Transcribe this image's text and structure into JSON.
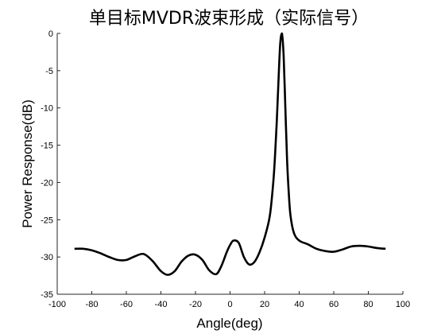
{
  "chart_data": {
    "type": "line",
    "title": "单目标MVDR波束形成（实际信号）",
    "xlabel": "Angle(deg)",
    "ylabel": "Power Response(dB)",
    "xlim": [
      -100,
      100
    ],
    "ylim": [
      -35,
      0
    ],
    "grid": false,
    "x_ticks": [
      -100,
      -80,
      -60,
      -40,
      -20,
      0,
      20,
      40,
      60,
      80,
      100
    ],
    "y_ticks": [
      0,
      -5,
      -10,
      -15,
      -20,
      -25,
      -30,
      -35
    ],
    "x_tick_labels": [
      "-100",
      "-80",
      "-60",
      "-40",
      "-20",
      "0",
      "20",
      "40",
      "60",
      "80",
      "100"
    ],
    "y_tick_labels": [
      "0",
      "-5",
      "-10",
      "-15",
      "-20",
      "-25",
      "-30",
      "-35"
    ],
    "series": [
      {
        "color": "#000000",
        "x": [
          -90,
          -85,
          -80,
          -75,
          -70,
          -65,
          -60,
          -55,
          -50,
          -45,
          -40,
          -36,
          -32,
          -28,
          -24,
          -20,
          -16,
          -12,
          -8,
          -5,
          -2,
          0,
          2,
          5,
          8,
          11,
          14,
          17,
          20,
          23,
          25,
          26,
          27,
          28,
          29,
          30,
          31,
          32,
          33,
          34,
          35,
          37,
          40,
          45,
          50,
          55,
          60,
          65,
          70,
          75,
          80,
          85,
          90
        ],
        "y": [
          -28.9,
          -28.9,
          -29.1,
          -29.5,
          -30.0,
          -30.4,
          -30.4,
          -29.9,
          -29.6,
          -30.5,
          -31.9,
          -32.4,
          -31.9,
          -30.6,
          -29.8,
          -29.7,
          -30.4,
          -31.8,
          -32.3,
          -31.2,
          -29.4,
          -28.4,
          -27.8,
          -28.1,
          -30.0,
          -31.0,
          -30.7,
          -29.4,
          -27.4,
          -24.5,
          -20.0,
          -16.5,
          -12.0,
          -6.5,
          -1.5,
          0.0,
          -3.0,
          -10.0,
          -17.0,
          -21.5,
          -24.5,
          -26.8,
          -27.8,
          -28.3,
          -28.9,
          -29.2,
          -29.3,
          -29.0,
          -28.6,
          -28.5,
          -28.6,
          -28.8,
          -28.9
        ]
      }
    ]
  }
}
